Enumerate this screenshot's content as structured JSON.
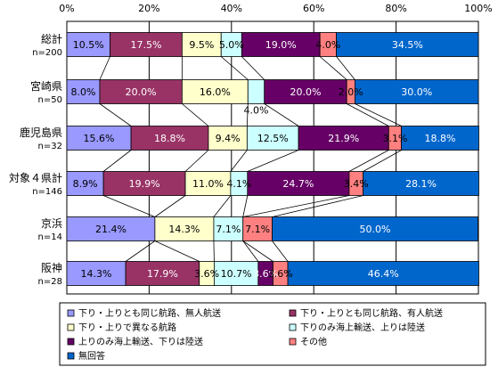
{
  "chart_data": {
    "type": "bar",
    "orientation": "horizontal",
    "stacked": "percent",
    "title": "",
    "xlabel": "",
    "ylabel": "",
    "xlim": [
      0,
      100
    ],
    "x_ticks": [
      "0%",
      "20%",
      "40%",
      "60%",
      "80%",
      "100%"
    ],
    "grid": true,
    "legend_position": "bottom",
    "categories": [
      {
        "name": "総計",
        "n": "n=200"
      },
      {
        "name": "宮崎県",
        "n": "n=50"
      },
      {
        "name": "鹿児島県",
        "n": "n=32"
      },
      {
        "name": "対象４県計",
        "n": "n=146"
      },
      {
        "name": "京浜",
        "n": "n=14"
      },
      {
        "name": "阪神",
        "n": "n=28"
      }
    ],
    "series": [
      {
        "name": "下り・上りとも同じ航路、無人航送",
        "color": "#9999ff",
        "values": [
          10.5,
          8.0,
          15.6,
          8.9,
          21.4,
          14.3
        ],
        "labels": [
          "10.5%",
          "8.0%",
          "15.6%",
          "8.9%",
          "21.4%",
          "14.3%"
        ]
      },
      {
        "name": "下り・上りとも同じ航路、有人航送",
        "color": "#993366",
        "values": [
          17.5,
          20.0,
          18.8,
          19.9,
          0,
          17.9
        ],
        "labels": [
          "17.5%",
          "20.0%",
          "18.8%",
          "19.9%",
          "",
          "17.9%"
        ]
      },
      {
        "name": "下り・上りで異なる航路",
        "color": "#ffffcc",
        "values": [
          9.5,
          16.0,
          9.4,
          11.0,
          14.3,
          3.6
        ],
        "labels": [
          "9.5%",
          "16.0%",
          "9.4%",
          "11.0%",
          "14.3%",
          "3.6%"
        ]
      },
      {
        "name": "下りのみ海上輸送、上りは陸送",
        "color": "#ccffff",
        "values": [
          5.0,
          4.0,
          12.5,
          4.1,
          7.1,
          10.7
        ],
        "labels": [
          "5.0%",
          "4.0%",
          "12.5%",
          "4.1%",
          "7.1%",
          "10.7%"
        ]
      },
      {
        "name": "上りのみ海上輸送、下りは陸送",
        "color": "#660066",
        "values": [
          19.0,
          20.0,
          21.9,
          24.7,
          0,
          3.6
        ],
        "labels": [
          "19.0%",
          "20.0%",
          "21.9%",
          "24.7%",
          "",
          "3.6%"
        ]
      },
      {
        "name": "その他",
        "color": "#ff8080",
        "values": [
          4.0,
          2.0,
          3.1,
          3.4,
          7.1,
          3.6
        ],
        "labels": [
          "4.0%",
          "2.0%",
          "3.1%",
          "3.4%",
          "7.1%",
          "3.6%"
        ]
      },
      {
        "name": "無回答",
        "color": "#0066cc",
        "values": [
          34.5,
          30.0,
          18.8,
          28.1,
          50.0,
          46.4
        ],
        "labels": [
          "34.5%",
          "30.0%",
          "18.8%",
          "28.1%",
          "50.0%",
          "46.4%"
        ]
      }
    ]
  }
}
